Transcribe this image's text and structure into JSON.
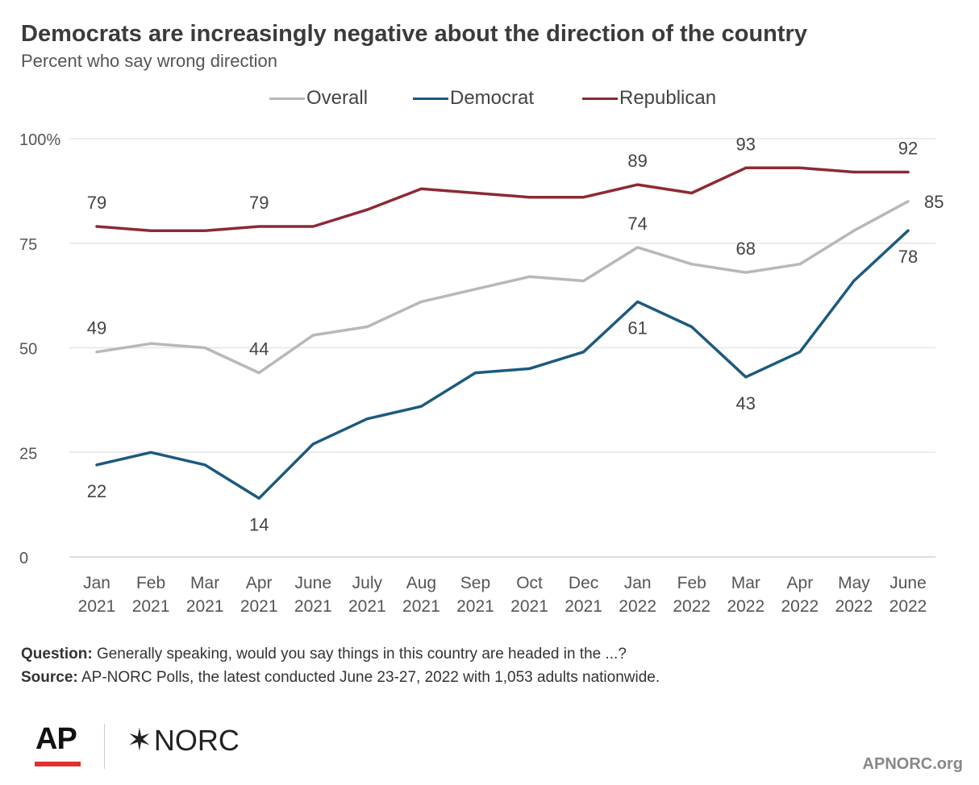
{
  "header": {
    "title": "Democrats are increasingly negative about the direction of the country",
    "subtitle": "Percent who say wrong direction"
  },
  "notes": {
    "question_label": "Question:",
    "question_text": " Generally speaking, would you say things in this country are headed in the ...?",
    "source_label": "Source:",
    "source_text": " AP-NORC Polls, the latest conducted June 23-27, 2022 with 1,053 adults nationwide."
  },
  "branding": {
    "ap": "AP",
    "norc": "NORC",
    "norc_icon": "asterisk-star-icon",
    "site": "APNORC.org",
    "ap_accent": "#e03030"
  },
  "chart_data": {
    "type": "line",
    "title": "Democrats are increasingly negative about the direction of the country",
    "subtitle": "Percent who say wrong direction",
    "xlabel": "",
    "ylabel": "",
    "ylim": [
      0,
      100
    ],
    "yticks": [
      0,
      25,
      50,
      75,
      100
    ],
    "ytick_labels": [
      "0",
      "25",
      "50",
      "75",
      "100%"
    ],
    "grid": true,
    "legend_position": "top",
    "categories": [
      [
        "Jan",
        "2021"
      ],
      [
        "Feb",
        "2021"
      ],
      [
        "Mar",
        "2021"
      ],
      [
        "Apr",
        "2021"
      ],
      [
        "June",
        "2021"
      ],
      [
        "July",
        "2021"
      ],
      [
        "Aug",
        "2021"
      ],
      [
        "Sep",
        "2021"
      ],
      [
        "Oct",
        "2021"
      ],
      [
        "Dec",
        "2021"
      ],
      [
        "Jan",
        "2022"
      ],
      [
        "Feb",
        "2022"
      ],
      [
        "Mar",
        "2022"
      ],
      [
        "Apr",
        "2022"
      ],
      [
        "May",
        "2022"
      ],
      [
        "June",
        "2022"
      ]
    ],
    "series": [
      {
        "name": "Overall",
        "color": "#b8b8b8",
        "values": [
          49,
          51,
          50,
          44,
          53,
          55,
          61,
          64,
          67,
          66,
          74,
          70,
          68,
          70,
          78,
          85
        ],
        "labels": [
          {
            "index": 0,
            "text": "49",
            "pos": "above"
          },
          {
            "index": 3,
            "text": "44",
            "pos": "above"
          },
          {
            "index": 10,
            "text": "74",
            "pos": "above"
          },
          {
            "index": 12,
            "text": "68",
            "pos": "above"
          },
          {
            "index": 15,
            "text": "85",
            "pos": "right"
          }
        ]
      },
      {
        "name": "Democrat",
        "color": "#1d5a7e",
        "values": [
          22,
          25,
          22,
          14,
          27,
          33,
          36,
          44,
          45,
          49,
          61,
          55,
          43,
          49,
          66,
          78
        ],
        "labels": [
          {
            "index": 0,
            "text": "22",
            "pos": "below"
          },
          {
            "index": 3,
            "text": "14",
            "pos": "below"
          },
          {
            "index": 10,
            "text": "61",
            "pos": "below"
          },
          {
            "index": 12,
            "text": "43",
            "pos": "below"
          },
          {
            "index": 15,
            "text": "78",
            "pos": "below"
          }
        ]
      },
      {
        "name": "Republican",
        "color": "#8c2a35",
        "values": [
          79,
          78,
          78,
          79,
          79,
          83,
          88,
          87,
          86,
          86,
          89,
          87,
          93,
          93,
          92,
          92
        ],
        "labels": [
          {
            "index": 0,
            "text": "79",
            "pos": "above"
          },
          {
            "index": 3,
            "text": "79",
            "pos": "above"
          },
          {
            "index": 10,
            "text": "89",
            "pos": "above"
          },
          {
            "index": 12,
            "text": "93",
            "pos": "above"
          },
          {
            "index": 15,
            "text": "92",
            "pos": "above"
          }
        ]
      }
    ]
  }
}
